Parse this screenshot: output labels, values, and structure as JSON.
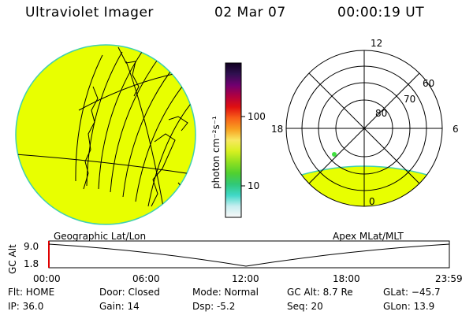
{
  "header": {
    "instrument": "Ultraviolet Imager",
    "date": "02 Mar 07",
    "time": "00:00:19 UT"
  },
  "colors": {
    "image_fill": "#e8ff00",
    "image_edge": "#40d0b0",
    "dot": "#40e040"
  },
  "colorbar": {
    "unit_label": "photon cm⁻²s⁻¹",
    "ticks": [
      "100",
      "10"
    ],
    "stops": [
      "#f8f8f8",
      "#c8eef0",
      "#40d8c8",
      "#30c878",
      "#50d030",
      "#90e020",
      "#d8f020",
      "#f8e860",
      "#f8a020",
      "#f86018",
      "#e01010",
      "#b00040",
      "#700070",
      "#301050",
      "#100020"
    ]
  },
  "polar": {
    "ring_labels": [
      "80",
      "70",
      "60"
    ],
    "mlt_labels": [
      "12",
      "18",
      "6",
      "0"
    ]
  },
  "timeline": {
    "left_label": "Geographic Lat/Lon",
    "right_label": "Apex MLat/MLT",
    "axis_title": "GC Alt",
    "y_ticks": [
      "9.0",
      "1.8"
    ],
    "x_ticks": [
      "00:00",
      "06:00",
      "12:00",
      "18:00",
      "23:59"
    ]
  },
  "status": {
    "flt": "Flt: HOME",
    "ip": "IP: 36.0",
    "door": "Door: Closed",
    "gain": "Gain: 14",
    "mode": "Mode: Normal",
    "dsp": "Dsp:    -5.2",
    "gcalt": "GC Alt: 8.7 Re",
    "seq": "Seq: 20",
    "glat": "GLat: −45.7",
    "glon": "GLon:   13.9"
  }
}
